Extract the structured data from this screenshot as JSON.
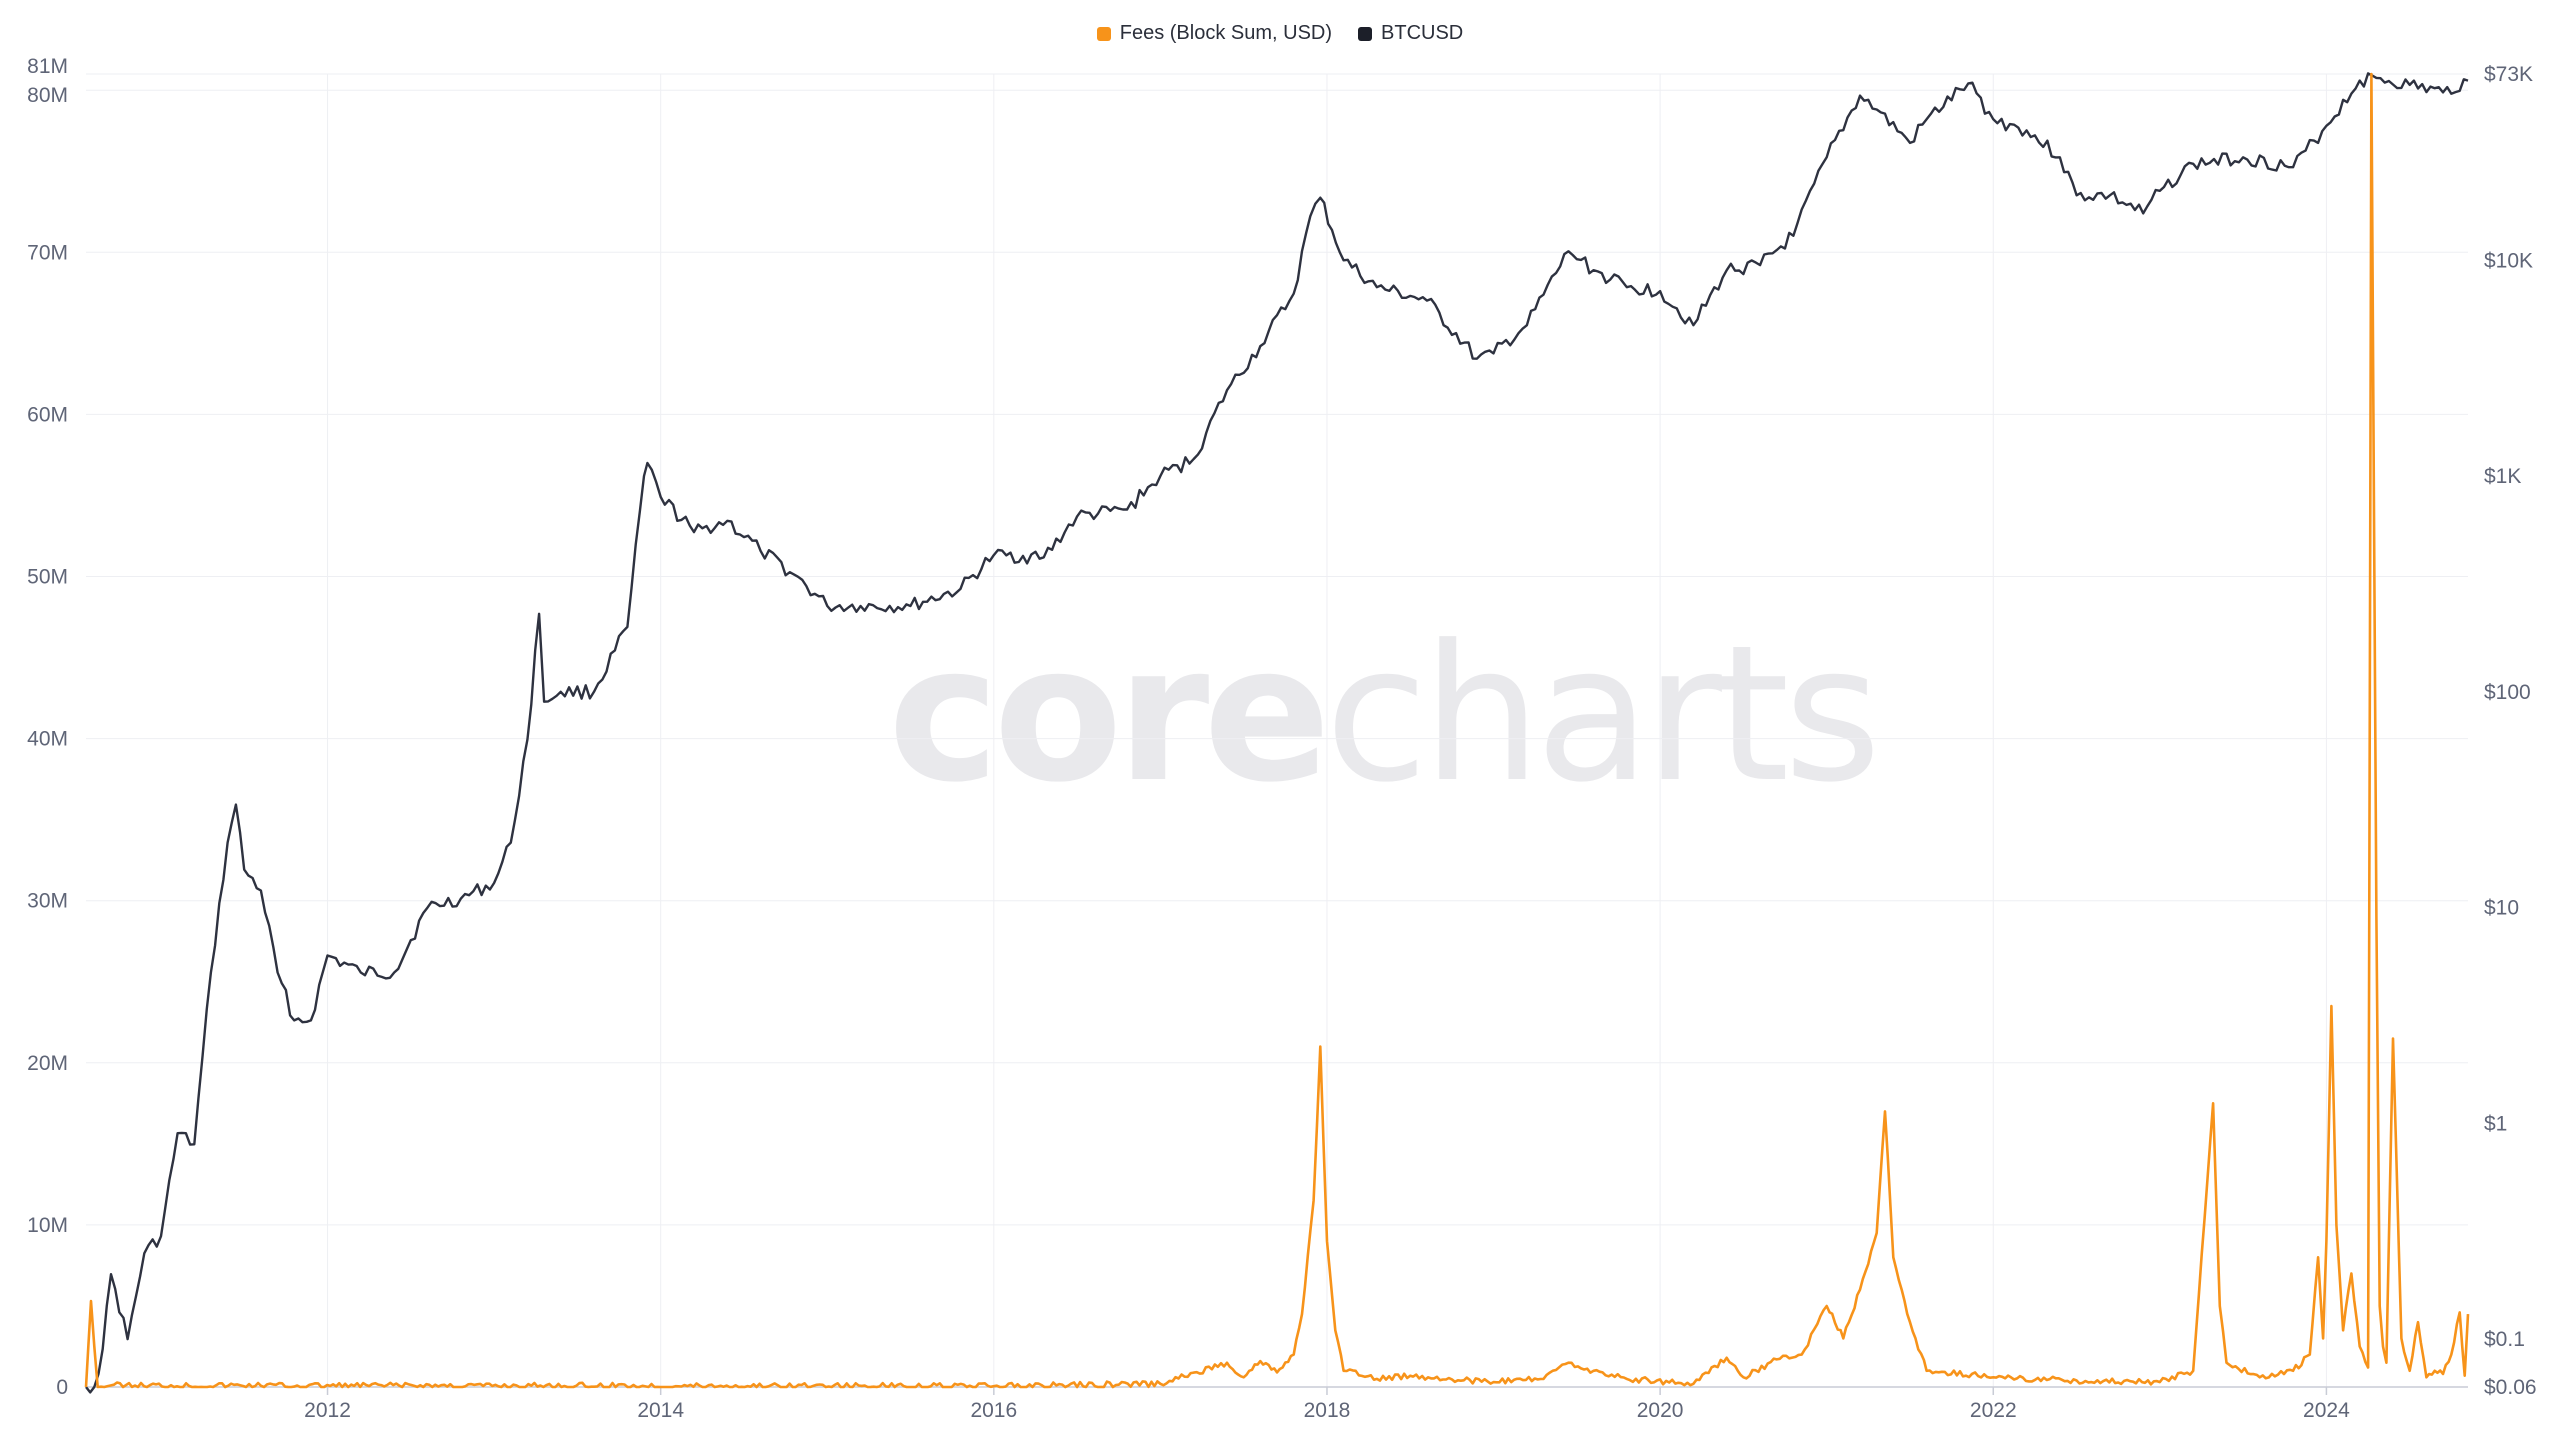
{
  "legend": {
    "fees_label": "Fees (Block Sum, USD)",
    "btc_label": "BTCUSD"
  },
  "watermark": {
    "part1": "core",
    "part2": "charts"
  },
  "colors": {
    "fees": "#f7931a",
    "btc": "#2e3240",
    "grid": "#eeeff3",
    "axis_text": "#5f6577",
    "watermark": "#e9e9ec"
  },
  "chart_data": {
    "type": "line",
    "title": "",
    "x_ticks": [
      "2012",
      "2014",
      "2016",
      "2018",
      "2020",
      "2022",
      "2024"
    ],
    "x_range": [
      2010.55,
      2024.85
    ],
    "left_axis": {
      "ticks": [
        "0",
        "10M",
        "20M",
        "30M",
        "40M",
        "50M",
        "60M",
        "70M",
        "80M",
        "81M"
      ],
      "ylim": [
        0,
        81000000
      ]
    },
    "right_axis": {
      "scale": "log",
      "ticks": [
        "$0.06",
        "$0.1",
        "$1",
        "$10",
        "$100",
        "$1K",
        "$10K",
        "$73K"
      ],
      "ylim": [
        0.06,
        73000
      ]
    },
    "grid": true,
    "legend_position": "top-center",
    "series": [
      {
        "name": "BTCUSD",
        "axis": "right",
        "x": [
          2010.55,
          2010.6,
          2010.65,
          2010.7,
          2010.8,
          2010.9,
          2011.0,
          2011.1,
          2011.2,
          2011.3,
          2011.4,
          2011.45,
          2011.5,
          2011.6,
          2011.7,
          2011.8,
          2011.9,
          2012.0,
          2012.2,
          2012.4,
          2012.6,
          2012.8,
          2013.0,
          2013.1,
          2013.2,
          2013.27,
          2013.3,
          2013.4,
          2013.6,
          2013.8,
          2013.9,
          2013.92,
          2014.0,
          2014.2,
          2014.4,
          2014.6,
          2014.8,
          2015.0,
          2015.2,
          2015.5,
          2015.8,
          2016.0,
          2016.3,
          2016.5,
          2016.8,
          2017.0,
          2017.2,
          2017.4,
          2017.6,
          2017.8,
          2017.9,
          2017.96,
          2018.1,
          2018.3,
          2018.6,
          2018.9,
          2019.0,
          2019.2,
          2019.45,
          2019.6,
          2019.8,
          2020.0,
          2020.2,
          2020.4,
          2020.6,
          2020.8,
          2021.0,
          2021.2,
          2021.3,
          2021.5,
          2021.6,
          2021.85,
          2022.0,
          2022.2,
          2022.4,
          2022.5,
          2022.7,
          2022.9,
          2023.0,
          2023.2,
          2023.5,
          2023.8,
          2024.0,
          2024.2,
          2024.3,
          2024.5,
          2024.7,
          2024.85
        ],
        "values": [
          0.06,
          0.06,
          0.09,
          0.2,
          0.1,
          0.25,
          0.3,
          0.9,
          0.8,
          5,
          20,
          30,
          15,
          12,
          5,
          3,
          3,
          6,
          5,
          5,
          10,
          11,
          13,
          20,
          60,
          230,
          90,
          100,
          100,
          200,
          1000,
          1150,
          800,
          550,
          620,
          450,
          350,
          250,
          250,
          250,
          300,
          430,
          420,
          650,
          700,
          1000,
          1200,
          2500,
          4000,
          7000,
          16000,
          19500,
          10000,
          7500,
          6500,
          3500,
          3700,
          5000,
          11000,
          9000,
          7500,
          7200,
          5000,
          9000,
          9500,
          13000,
          30000,
          58000,
          50000,
          35000,
          45000,
          66000,
          45000,
          40000,
          30000,
          20000,
          20000,
          16500,
          21000,
          28000,
          30000,
          27000,
          42000,
          68000,
          70000,
          65000,
          60000,
          68000
        ]
      },
      {
        "name": "Fees (Block Sum, USD)",
        "axis": "left",
        "x": [
          2010.55,
          2010.58,
          2010.62,
          2010.7,
          2016.0,
          2017.0,
          2017.4,
          2017.5,
          2017.6,
          2017.7,
          2017.8,
          2017.85,
          2017.92,
          2017.96,
          2018.0,
          2018.05,
          2018.1,
          2018.3,
          2018.5,
          2019.0,
          2019.3,
          2019.45,
          2019.6,
          2019.8,
          2020.2,
          2020.4,
          2020.5,
          2020.7,
          2020.85,
          2021.0,
          2021.1,
          2021.2,
          2021.3,
          2021.35,
          2021.4,
          2021.5,
          2021.6,
          2022.0,
          2022.5,
          2023.0,
          2023.2,
          2023.32,
          2023.36,
          2023.4,
          2023.6,
          2023.8,
          2023.9,
          2023.95,
          2023.98,
          2024.0,
          2024.03,
          2024.06,
          2024.1,
          2024.15,
          2024.2,
          2024.25,
          2024.27,
          2024.3,
          2024.32,
          2024.34,
          2024.36,
          2024.4,
          2024.45,
          2024.5,
          2024.55,
          2024.6,
          2024.65,
          2024.7,
          2024.75,
          2024.8,
          2024.83,
          2024.85
        ],
        "values": [
          0,
          5300000,
          0,
          100000,
          50000,
          200000,
          1500000,
          600000,
          1600000,
          900000,
          2000000,
          4500000,
          11500000,
          21000000,
          9000000,
          3500000,
          1000000,
          500000,
          700000,
          300000,
          500000,
          1500000,
          1000000,
          500000,
          200000,
          1800000,
          600000,
          1700000,
          2000000,
          5000000,
          3000000,
          6000000,
          9500000,
          17000000,
          8000000,
          4000000,
          1000000,
          600000,
          400000,
          300000,
          1000000,
          17500000,
          5000000,
          1500000,
          600000,
          1000000,
          2000000,
          8000000,
          3000000,
          9000000,
          23500000,
          10000000,
          3500000,
          7000000,
          2500000,
          1200000,
          81000000,
          29000000,
          5000000,
          2500000,
          1500000,
          21500000,
          3000000,
          1000000,
          4000000,
          600000,
          1000000,
          800000,
          2000000,
          4600000,
          700000,
          4500000
        ]
      }
    ]
  }
}
